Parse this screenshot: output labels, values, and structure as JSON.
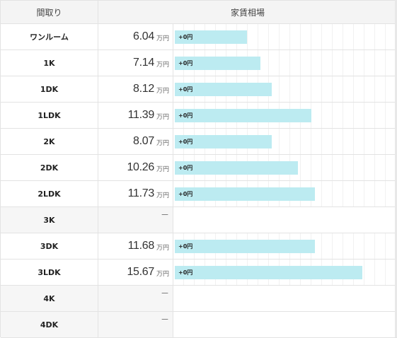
{
  "header": {
    "madori_label": "間取り",
    "chinryo_label": "家賃相場"
  },
  "unit_label": "万円",
  "dash_label": "－",
  "max_value": 18.8,
  "rows": [
    {
      "label": "ワンルーム",
      "price": "6.04",
      "value": 6.04,
      "bar_label": "+0円"
    },
    {
      "label": "1K",
      "price": "7.14",
      "value": 7.14,
      "bar_label": "+0円"
    },
    {
      "label": "1DK",
      "price": "8.12",
      "value": 8.12,
      "bar_label": "+0円"
    },
    {
      "label": "1LDK",
      "price": "11.39",
      "value": 11.39,
      "bar_label": "+0円"
    },
    {
      "label": "2K",
      "price": "8.07",
      "value": 8.07,
      "bar_label": "+0円"
    },
    {
      "label": "2DK",
      "price": "10.26",
      "value": 10.26,
      "bar_label": "+0円"
    },
    {
      "label": "2LDK",
      "price": "11.73",
      "value": 11.73,
      "bar_label": "+0円"
    },
    {
      "label": "3K",
      "price": null,
      "value": null,
      "bar_label": null
    },
    {
      "label": "3DK",
      "price": "11.68",
      "value": 11.68,
      "bar_label": "+0円"
    },
    {
      "label": "3LDK",
      "price": "15.67",
      "value": 15.67,
      "bar_label": "+0円"
    },
    {
      "label": "4K",
      "price": null,
      "value": null,
      "bar_label": null
    },
    {
      "label": "4DK",
      "price": null,
      "value": null,
      "bar_label": null
    }
  ]
}
